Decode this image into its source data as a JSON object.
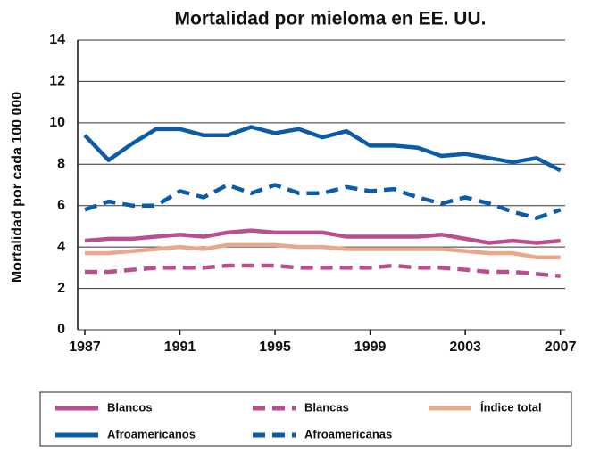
{
  "chart_data": {
    "type": "line",
    "title": "Mortalidad por mieloma en EE. UU.",
    "y_label": "Mortalidad por cada 100 000",
    "x": [
      1987,
      1988,
      1989,
      1990,
      1991,
      1992,
      1993,
      1994,
      1995,
      1996,
      1997,
      1998,
      1999,
      2000,
      2001,
      2002,
      2003,
      2004,
      2005,
      2006,
      2007
    ],
    "xlim": [
      1986.7,
      2007.2
    ],
    "xticks": [
      1987,
      1991,
      1995,
      1999,
      2003,
      2007
    ],
    "ylim": [
      0,
      14
    ],
    "yticks": [
      0,
      2,
      4,
      6,
      8,
      10,
      12,
      14
    ],
    "grid": true,
    "series": [
      {
        "name": "Blancos",
        "color": "#b94f8f",
        "dashed": false,
        "values": [
          4.3,
          4.4,
          4.4,
          4.5,
          4.6,
          4.5,
          4.7,
          4.8,
          4.7,
          4.7,
          4.7,
          4.5,
          4.5,
          4.5,
          4.5,
          4.6,
          4.4,
          4.2,
          4.3,
          4.2,
          4.3
        ]
      },
      {
        "name": "Blancas",
        "color": "#b94f8f",
        "dashed": true,
        "values": [
          2.8,
          2.8,
          2.9,
          3.0,
          3.0,
          3.0,
          3.1,
          3.1,
          3.1,
          3.0,
          3.0,
          3.0,
          3.0,
          3.1,
          3.0,
          3.0,
          2.9,
          2.8,
          2.8,
          2.7,
          2.6
        ]
      },
      {
        "name": "Índice total",
        "color": "#e8a98a",
        "dashed": false,
        "values": [
          3.7,
          3.7,
          3.8,
          3.9,
          4.0,
          3.9,
          4.1,
          4.1,
          4.1,
          4.0,
          4.0,
          3.9,
          3.9,
          3.9,
          3.9,
          3.9,
          3.8,
          3.7,
          3.7,
          3.5,
          3.5
        ]
      },
      {
        "name": "Afroamericanos",
        "color": "#0a5ba8",
        "dashed": false,
        "values": [
          9.4,
          8.2,
          9.0,
          9.7,
          9.7,
          9.4,
          9.4,
          9.8,
          9.5,
          9.7,
          9.3,
          9.6,
          8.9,
          8.9,
          8.8,
          8.4,
          8.5,
          8.3,
          8.1,
          8.3,
          7.7
        ]
      },
      {
        "name": "Afroamericanas",
        "color": "#0a5ba8",
        "dashed": true,
        "values": [
          5.8,
          6.2,
          6.0,
          6.0,
          6.7,
          6.4,
          7.0,
          6.6,
          7.0,
          6.6,
          6.6,
          6.9,
          6.7,
          6.8,
          6.4,
          6.1,
          6.4,
          6.1,
          5.7,
          5.4,
          5.8
        ]
      }
    ]
  }
}
